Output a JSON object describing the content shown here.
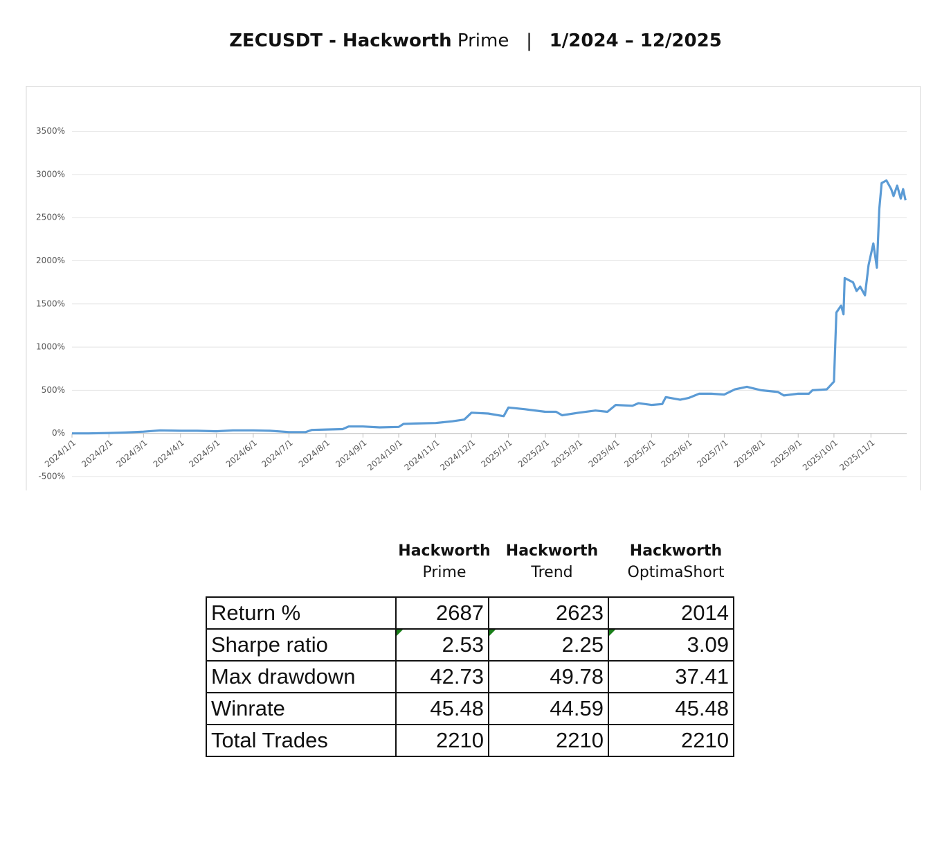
{
  "header": {
    "symbol": "ZECUSDT - Hackworth",
    "variant": "Prime",
    "separator": "|",
    "period": "1/2024 – 12/2025"
  },
  "chart_data": {
    "type": "line",
    "color": "#5b9bd5",
    "grid": true,
    "x": [
      "2024/1/1",
      "2024/1/15",
      "2024/2/1",
      "2024/2/15",
      "2024/3/1",
      "2024/3/15",
      "2024/4/1",
      "2024/4/15",
      "2024/5/1",
      "2024/5/15",
      "2024/6/1",
      "2024/6/15",
      "2024/7/1",
      "2024/7/15",
      "2024/7/20",
      "2024/8/1",
      "2024/8/15",
      "2024/8/20",
      "2024/9/1",
      "2024/9/15",
      "2024/10/1",
      "2024/10/5",
      "2024/10/15",
      "2024/11/1",
      "2024/11/15",
      "2024/11/25",
      "2024/12/1",
      "2024/12/15",
      "2024/12/28",
      "2025/1/1",
      "2025/1/15",
      "2025/2/1",
      "2025/2/10",
      "2025/2/15",
      "2025/3/1",
      "2025/3/15",
      "2025/3/25",
      "2025/4/1",
      "2025/4/15",
      "2025/4/20",
      "2025/5/1",
      "2025/5/10",
      "2025/5/13",
      "2025/5/25",
      "2025/6/1",
      "2025/6/10",
      "2025/6/20",
      "2025/7/1",
      "2025/7/10",
      "2025/7/20",
      "2025/8/1",
      "2025/8/15",
      "2025/8/20",
      "2025/9/1",
      "2025/9/10",
      "2025/9/13",
      "2025/9/25",
      "2025/10/1",
      "2025/10/3",
      "2025/10/7",
      "2025/10/9",
      "2025/10/10",
      "2025/10/17",
      "2025/10/20",
      "2025/10/23",
      "2025/10/27",
      "2025/10/30",
      "2025/11/3",
      "2025/11/6",
      "2025/11/8",
      "2025/11/10",
      "2025/11/14",
      "2025/11/18",
      "2025/11/20",
      "2025/11/23",
      "2025/11/26",
      "2025/11/28",
      "2025/11/30"
    ],
    "values": [
      0,
      0,
      5,
      10,
      20,
      35,
      30,
      30,
      25,
      35,
      35,
      30,
      15,
      15,
      40,
      45,
      50,
      80,
      80,
      70,
      75,
      110,
      115,
      120,
      140,
      160,
      240,
      230,
      200,
      300,
      280,
      250,
      250,
      210,
      240,
      265,
      250,
      330,
      320,
      350,
      330,
      340,
      420,
      390,
      410,
      460,
      460,
      450,
      510,
      540,
      500,
      480,
      440,
      460,
      460,
      500,
      510,
      600,
      1400,
      1480,
      1380,
      1800,
      1750,
      1650,
      1700,
      1600,
      1950,
      2200,
      1920,
      2600,
      2900,
      2930,
      2830,
      2750,
      2870,
      2720,
      2830,
      2700
    ],
    "xlim": [
      "2024/1/1",
      "2025/12/1"
    ],
    "xticks": [
      "2024/1/1",
      "2024/2/1",
      "2024/3/1",
      "2024/4/1",
      "2024/5/1",
      "2024/6/1",
      "2024/7/1",
      "2024/8/1",
      "2024/9/1",
      "2024/10/1",
      "2024/11/1",
      "2024/12/1",
      "2025/1/1",
      "2025/2/1",
      "2025/3/1",
      "2025/4/1",
      "2025/5/1",
      "2025/6/1",
      "2025/7/1",
      "2025/8/1",
      "2025/9/1",
      "2025/10/1",
      "2025/11/1"
    ],
    "ylim": [
      -500,
      3500
    ],
    "yticks": [
      {
        "value": -500,
        "label": "-500%"
      },
      {
        "value": 0,
        "label": "0%"
      },
      {
        "value": 500,
        "label": "500%"
      },
      {
        "value": 1000,
        "label": "1000%"
      },
      {
        "value": 1500,
        "label": "1500%"
      },
      {
        "value": 2000,
        "label": "2000%"
      },
      {
        "value": 2500,
        "label": "2500%"
      },
      {
        "value": 3000,
        "label": "3000%"
      },
      {
        "value": 3500,
        "label": "3500%"
      }
    ]
  },
  "table": {
    "columns": [
      {
        "name": "Hackworth",
        "variant": "Prime"
      },
      {
        "name": "Hackworth",
        "variant": "Trend"
      },
      {
        "name": "Hackworth",
        "variant": "OptimaShort"
      }
    ],
    "rows": [
      [
        "Return %",
        2687,
        2623,
        2014
      ],
      [
        "Sharpe ratio",
        2.53,
        2.25,
        3.09
      ],
      [
        "Max drawdown",
        42.73,
        49.78,
        37.41
      ],
      [
        "Winrate",
        45.48,
        44.59,
        45.48
      ],
      [
        "Total Trades",
        2210,
        2210,
        2210
      ]
    ]
  }
}
